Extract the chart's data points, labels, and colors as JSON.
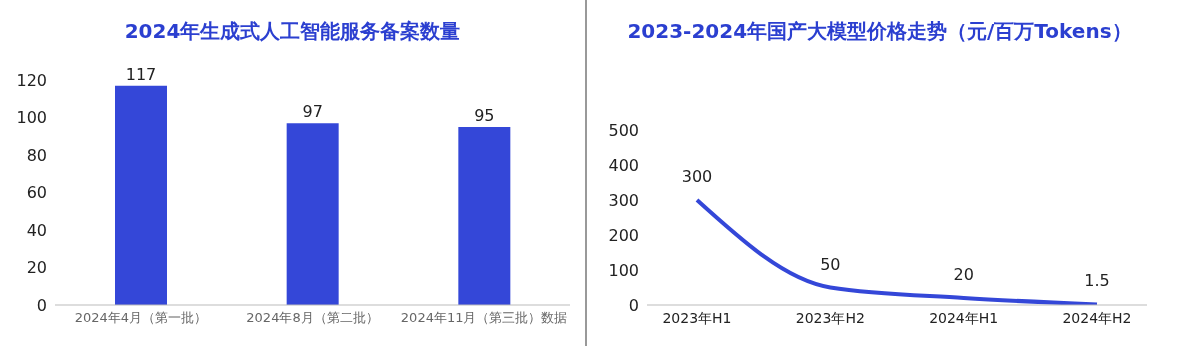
{
  "chart_data": [
    {
      "type": "bar",
      "title": "2024年生成式人工智能服务备案数量",
      "categories": [
        "2024年4月（第一批）",
        "2024年8月（第二批）",
        "2024年11月（第三批）数据"
      ],
      "values": [
        117,
        97,
        95
      ],
      "color": "#3447d8",
      "ylim": [
        0,
        120
      ],
      "yticks": [
        0,
        20,
        40,
        60,
        80,
        100,
        120
      ],
      "data_labels": true
    },
    {
      "type": "line",
      "title": "2023-2024年国产大模型价格走势（元/百万Tokens）",
      "categories": [
        "2023年H1",
        "2023年H2",
        "2024年H1",
        "2024年H2"
      ],
      "values": [
        300,
        50,
        20,
        1.5
      ],
      "color": "#3447d8",
      "ylim": [
        0,
        500
      ],
      "yticks": [
        0,
        100,
        200,
        300,
        400,
        500
      ],
      "data_labels": true,
      "marker": "none"
    }
  ]
}
